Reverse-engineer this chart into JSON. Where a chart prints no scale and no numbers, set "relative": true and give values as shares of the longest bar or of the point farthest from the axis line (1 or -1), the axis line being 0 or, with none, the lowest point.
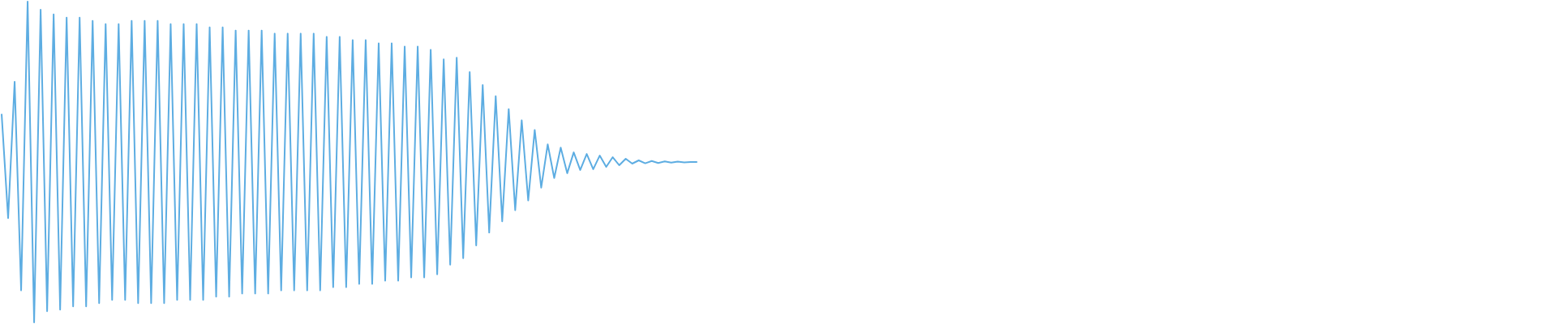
{
  "chart_data": {
    "type": "line",
    "relative": true,
    "tick_labels": false,
    "line_style": "solid",
    "categories": [
      null,
      null,
      null,
      null,
      null,
      null,
      null,
      null,
      null,
      null,
      null,
      null,
      null,
      null,
      null,
      null,
      null,
      null,
      null,
      null,
      null,
      null,
      null,
      null,
      null,
      null,
      null,
      null,
      null,
      null,
      null,
      null,
      null,
      null,
      null,
      null,
      null,
      null,
      null,
      null,
      null,
      null,
      null,
      null,
      null,
      null,
      null,
      null,
      null,
      null,
      null,
      null,
      null,
      null,
      null,
      null,
      null,
      null,
      null,
      null,
      null,
      null,
      null,
      null,
      null,
      null,
      null,
      null,
      null,
      null,
      null,
      null,
      null,
      null,
      null,
      null,
      null,
      null,
      null,
      null,
      null,
      null,
      null,
      null,
      null,
      null,
      null,
      null,
      null,
      null,
      null,
      null,
      null,
      null,
      null,
      null,
      null,
      null,
      null,
      null,
      null,
      null,
      null,
      null,
      null,
      null,
      null,
      null,
      null,
      null,
      null,
      null,
      null,
      null,
      null,
      null,
      null,
      null,
      null,
      null,
      null,
      null,
      null,
      null,
      null,
      null,
      null,
      null,
      null,
      null,
      null,
      null,
      null,
      null,
      null,
      null,
      null,
      null,
      null,
      null,
      null,
      null,
      null,
      null,
      null,
      null,
      null,
      null,
      null,
      null,
      null,
      null,
      null,
      null,
      null,
      null,
      null,
      null,
      null,
      null,
      null,
      null,
      null,
      null,
      null,
      null,
      null,
      null,
      null,
      null,
      null,
      null,
      null,
      null,
      null,
      null,
      null,
      null,
      null,
      null,
      null,
      null,
      null,
      null,
      null,
      null,
      null,
      null,
      null,
      null,
      null,
      null,
      null,
      null,
      null,
      null,
      null,
      null,
      null,
      null,
      null,
      null,
      null,
      null,
      null,
      null,
      null,
      null,
      null,
      null,
      null,
      null,
      null,
      null,
      null,
      null,
      null,
      null,
      null,
      null,
      null,
      null,
      null,
      null,
      null,
      null,
      null,
      null,
      null,
      null,
      null,
      null,
      null,
      null,
      null,
      null,
      null,
      null,
      null,
      null
    ],
    "series": [
      {
        "color": "#5dade2",
        "values": [
          0.65,
          0.325,
          0.75,
          0.1,
          1,
          0,
          0.975,
          0.035,
          0.96,
          0.04,
          0.95,
          0.05,
          0.95,
          0.05,
          0.94,
          0.06,
          0.93,
          0.07,
          0.93,
          0.07,
          0.94,
          0.06,
          0.94,
          0.06,
          0.94,
          0.06,
          0.93,
          0.07,
          0.93,
          0.07,
          0.93,
          0.07,
          0.92,
          0.08,
          0.92,
          0.08,
          0.91,
          0.09,
          0.91,
          0.09,
          0.91,
          0.09,
          0.9,
          0.1,
          0.9,
          0.1,
          0.9,
          0.1,
          0.9,
          0.1,
          0.89,
          0.11,
          0.89,
          0.11,
          0.88,
          0.12,
          0.88,
          0.12,
          0.87,
          0.13,
          0.87,
          0.13,
          0.86,
          0.14,
          0.86,
          0.14,
          0.85,
          0.15,
          0.82,
          0.18,
          0.825,
          0.2,
          0.78,
          0.24,
          0.74,
          0.28,
          0.705,
          0.315,
          0.665,
          0.35,
          0.63,
          0.38,
          0.6,
          0.42,
          0.555,
          0.45,
          0.545,
          0.465,
          0.53,
          0.475,
          0.525,
          0.4775,
          0.52,
          0.485,
          0.515,
          0.49,
          0.51,
          0.495,
          0.505,
          0.496,
          0.503,
          0.497,
          0.502,
          0.498,
          0.501,
          0.499,
          0.5,
          0.5,
          null,
          null,
          null,
          null,
          null,
          null,
          null,
          null,
          null,
          null,
          null,
          null,
          null,
          null,
          null,
          null,
          null,
          null,
          null,
          null,
          null,
          null,
          null,
          null,
          null,
          null,
          null,
          null,
          null,
          null,
          null,
          null,
          null,
          null,
          null,
          null,
          null,
          null,
          null,
          null,
          null,
          null,
          null,
          null,
          null,
          null,
          null,
          null,
          null,
          null,
          null,
          null,
          null,
          null,
          null,
          null,
          null,
          null,
          null,
          null,
          null,
          null,
          null,
          null,
          null,
          null,
          null,
          null,
          null,
          null,
          null,
          null,
          null,
          null,
          null,
          null,
          null,
          null,
          null,
          null,
          null,
          null,
          null,
          null,
          null,
          null,
          null,
          null,
          null,
          null,
          null,
          null,
          null,
          null,
          null,
          null,
          null,
          null,
          null,
          null,
          null,
          null,
          null,
          null,
          null,
          null,
          null,
          null,
          null,
          null,
          null,
          null,
          null,
          null,
          null,
          null,
          null,
          null,
          null,
          null,
          null,
          null,
          null,
          null,
          null,
          null,
          null,
          null,
          null,
          null,
          null,
          null
        ]
      }
    ]
  }
}
